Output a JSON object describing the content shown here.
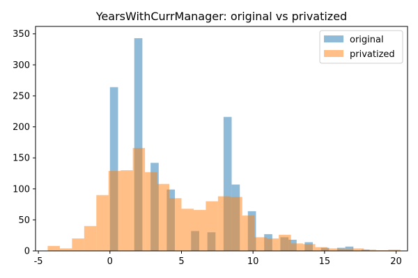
{
  "chart_data": {
    "type": "histogram-overlay",
    "title": "YearsWithCurrManager: original vs privatized",
    "xlabel": "",
    "ylabel": "",
    "xlim": [
      -5.2,
      20.8
    ],
    "ylim": [
      0,
      362
    ],
    "xticks": [
      -5,
      0,
      5,
      10,
      15,
      20
    ],
    "yticks": [
      0,
      50,
      100,
      150,
      200,
      250,
      300,
      350
    ],
    "grid": false,
    "legend_position": "upper-right",
    "series": [
      {
        "name": "original",
        "color": "#1f77b4",
        "opacity": 0.5,
        "bin_width": 0.567,
        "x": [
          0,
          1.7,
          2.84,
          3.97,
          5.67,
          6.81,
          7.94,
          8.51,
          9.64,
          10.78,
          11.91,
          12.48,
          13.61,
          14.75,
          15.88,
          16.45,
          17.58
        ],
        "values": [
          264,
          343,
          142,
          99,
          32,
          30,
          216,
          107,
          64,
          27,
          22,
          18,
          14,
          5,
          5,
          7,
          2
        ]
      },
      {
        "name": "privatized",
        "color": "#ff7f0e",
        "opacity": 0.5,
        "bin_width": 0.85,
        "x": [
          -4.35,
          -3.5,
          -2.65,
          -1.8,
          -0.95,
          -0.1,
          0.75,
          1.6,
          2.45,
          3.3,
          4.15,
          5.0,
          5.85,
          6.7,
          7.55,
          8.4,
          9.25,
          10.1,
          10.95,
          11.8,
          12.65,
          13.5,
          14.35,
          15.2,
          16.05,
          16.9,
          17.75,
          18.6,
          19.45
        ],
        "values": [
          8,
          4,
          20,
          40,
          90,
          129,
          130,
          166,
          127,
          108,
          85,
          68,
          66,
          80,
          88,
          87,
          57,
          22,
          20,
          26,
          12,
          11,
          6,
          4,
          3,
          4,
          2,
          1,
          2
        ]
      }
    ]
  }
}
